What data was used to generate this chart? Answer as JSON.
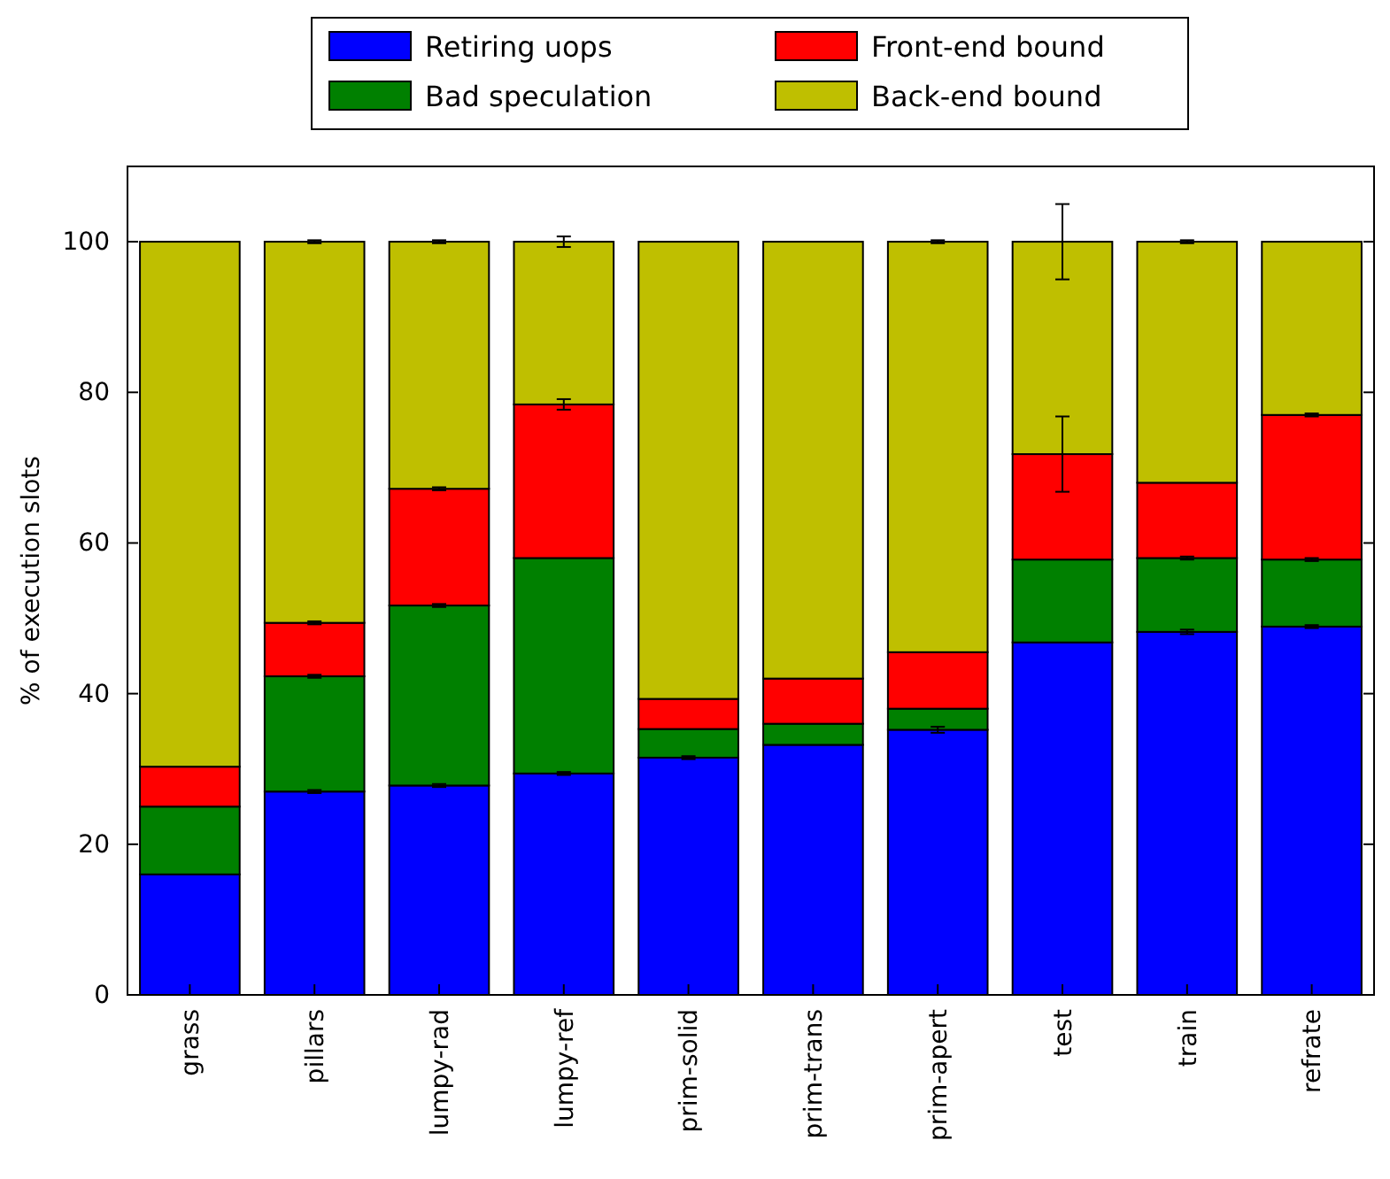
{
  "chart_data": {
    "type": "bar",
    "stacked": true,
    "ylabel": "% of execution slots",
    "categories": [
      "grass",
      "pillars",
      "lumpy-rad",
      "lumpy-ref",
      "prim-solid",
      "prim-trans",
      "prim-apert",
      "test",
      "train",
      "refrate"
    ],
    "series": [
      {
        "name": "Retiring uops",
        "color": "#0000ff",
        "values": [
          16,
          27,
          27.8,
          29.4,
          31.5,
          33.2,
          35.2,
          46.8,
          48.2,
          48.9
        ],
        "errors": [
          null,
          0.2,
          0.2,
          0.2,
          0.2,
          null,
          0.4,
          null,
          0.3,
          0.2
        ]
      },
      {
        "name": "Bad speculation",
        "color": "#008000",
        "values": [
          9,
          15.3,
          23.9,
          28.6,
          3.8,
          2.8,
          2.8,
          11,
          9.8,
          8.9
        ],
        "errors": [
          null,
          0.2,
          0.2,
          null,
          null,
          null,
          null,
          null,
          0.2,
          0.2
        ]
      },
      {
        "name": "Front-end bound",
        "color": "#ff0000",
        "values": [
          5.3,
          7.1,
          15.5,
          20.4,
          4,
          6,
          7.5,
          14,
          10,
          19.2
        ],
        "errors": [
          null,
          0.2,
          0.2,
          0.7,
          null,
          null,
          null,
          5,
          null,
          0.2
        ]
      },
      {
        "name": "Back-end bound",
        "color": "#bfbf00",
        "values": [
          69.7,
          50.6,
          32.8,
          21.6,
          60.7,
          58,
          54.5,
          28.2,
          32,
          23
        ],
        "errors": [
          null,
          0.2,
          0.2,
          0.7,
          null,
          null,
          0.2,
          5,
          0.2,
          null
        ]
      }
    ],
    "ylim": [
      0,
      110
    ],
    "yticks": [
      0,
      20,
      40,
      60,
      80,
      100
    ],
    "grid": false,
    "legend": "top"
  }
}
